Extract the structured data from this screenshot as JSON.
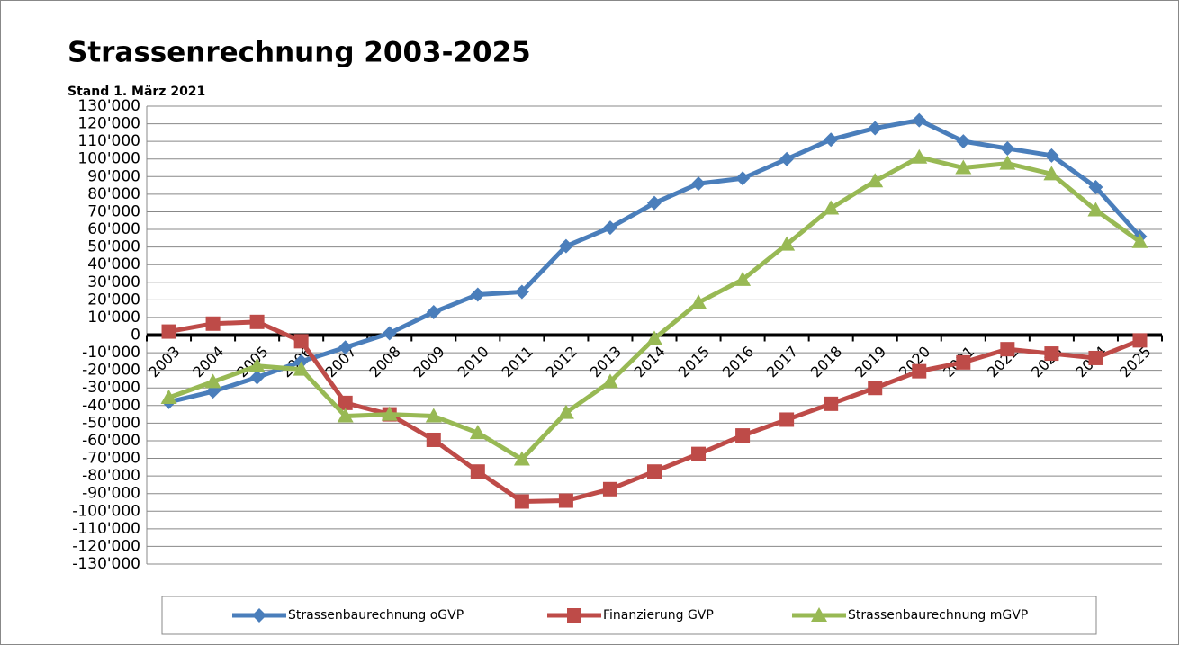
{
  "chart_data": {
    "type": "line",
    "title": "Strassenrechnung 2003-2025",
    "subtitle": "Stand 1. März 2021",
    "categories": [
      "2003",
      "2004",
      "2005",
      "2006",
      "2007",
      "2008",
      "2009",
      "2010",
      "2011",
      "2012",
      "2013",
      "2014",
      "2015",
      "2016",
      "2017",
      "2018",
      "2019",
      "2020",
      "2021",
      "2022",
      "2023",
      "2024",
      "2025"
    ],
    "series": [
      {
        "name": "Strassenbaurechnung oGVP",
        "color": "#4a7ebb",
        "marker": "diamond",
        "values": [
          -38000,
          -32000,
          -24000,
          -15000,
          -7000,
          1000,
          13000,
          23000,
          24500,
          50500,
          61000,
          75000,
          86000,
          89000,
          100000,
          111000,
          117500,
          122000,
          110000,
          106000,
          102000,
          84000,
          56000
        ]
      },
      {
        "name": "Finanzierung GVP",
        "color": "#be4b48",
        "marker": "square",
        "values": [
          2000,
          6500,
          7500,
          -3500,
          -38500,
          -45000,
          -59500,
          -77500,
          -94500,
          -94000,
          -87500,
          -77500,
          -67500,
          -57000,
          -48000,
          -39000,
          -30000,
          -20500,
          -15500,
          -8000,
          -10500,
          -13000,
          -3000
        ]
      },
      {
        "name": "Strassenbaurechnung mGVP",
        "color": "#98b954",
        "marker": "triangle",
        "values": [
          -35500,
          -26500,
          -17500,
          -19500,
          -46000,
          -45000,
          -46000,
          -55500,
          -70500,
          -44000,
          -26500,
          -2000,
          18500,
          31500,
          51500,
          72000,
          87500,
          101000,
          95000,
          97500,
          91500,
          71000,
          53000
        ]
      }
    ],
    "ylim": [
      -130000,
      130000
    ],
    "yticks": [
      {
        "value": -130000,
        "label": "-130'000"
      },
      {
        "value": -120000,
        "label": "-120'000"
      },
      {
        "value": -110000,
        "label": "-110'000"
      },
      {
        "value": -100000,
        "label": "-100'000"
      },
      {
        "value": -90000,
        "label": "-90'000"
      },
      {
        "value": -80000,
        "label": "-80'000"
      },
      {
        "value": -70000,
        "label": "-70'000"
      },
      {
        "value": -60000,
        "label": "-60'000"
      },
      {
        "value": -50000,
        "label": "-50'000"
      },
      {
        "value": -40000,
        "label": "-40'000"
      },
      {
        "value": -30000,
        "label": "-30'000"
      },
      {
        "value": -20000,
        "label": "-20'000"
      },
      {
        "value": -10000,
        "label": "-10'000"
      },
      0,
      {
        "value": 10000,
        "label": "10'000"
      },
      {
        "value": 20000,
        "label": "20'000"
      },
      {
        "value": 30000,
        "label": "30'000"
      },
      {
        "value": 40000,
        "label": "40'000"
      },
      {
        "value": 50000,
        "label": "50'000"
      },
      {
        "value": 60000,
        "label": "60'000"
      },
      {
        "value": 70000,
        "label": "70'000"
      },
      {
        "value": 80000,
        "label": "80'000"
      },
      {
        "value": 90000,
        "label": "90'000"
      },
      {
        "value": 100000,
        "label": "100'000"
      },
      {
        "value": 110000,
        "label": "110'000"
      },
      {
        "value": 120000,
        "label": "120'000"
      },
      {
        "value": 130000,
        "label": "130'000"
      }
    ],
    "grid": true,
    "legend": "bottom"
  }
}
